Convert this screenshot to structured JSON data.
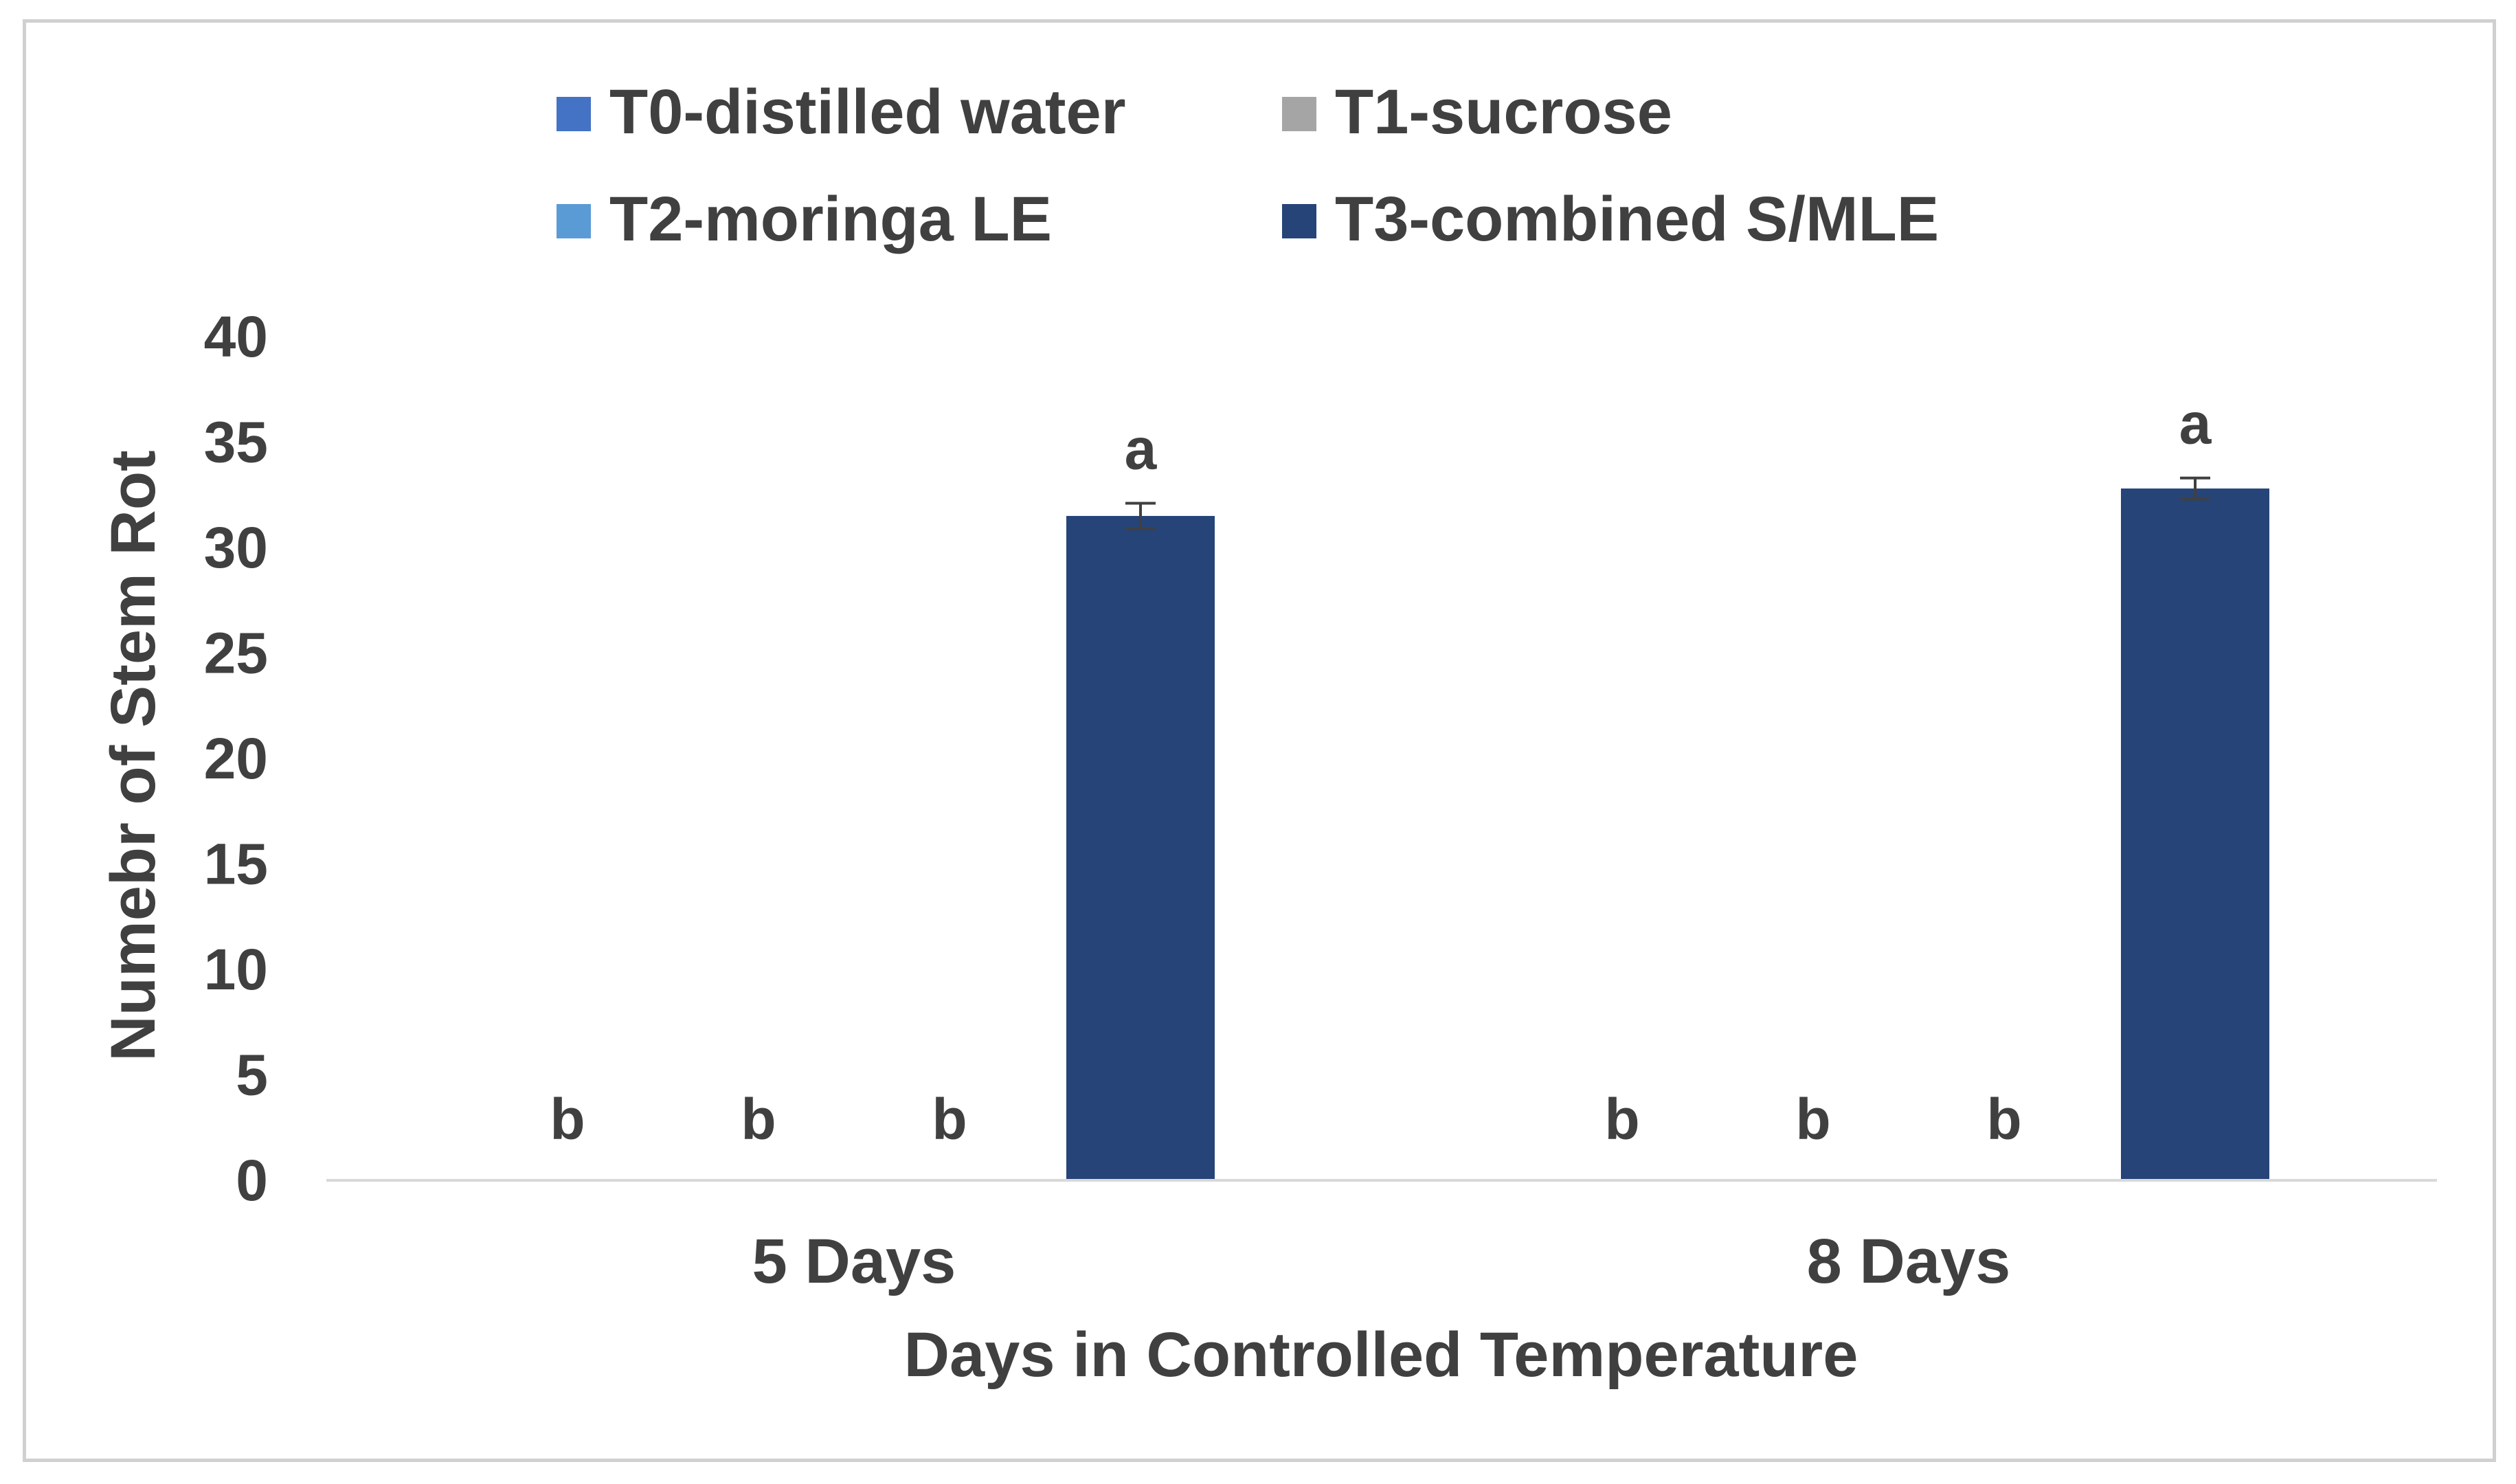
{
  "chart_data": {
    "type": "bar",
    "title": "",
    "xlabel": "Days in Controlled Temperature",
    "ylabel": "Numebr of Stem Rot",
    "ylim": [
      0,
      40
    ],
    "yticks": [
      0,
      5,
      10,
      15,
      20,
      25,
      30,
      35,
      40
    ],
    "categories": [
      "5 Days",
      "8 Days"
    ],
    "legend_position": "top",
    "grid": false,
    "series": [
      {
        "name": "T0-distilled water",
        "color": "#4472C4",
        "values": [
          0,
          0
        ],
        "errors": [
          0,
          0
        ],
        "labels": [
          "b",
          "b"
        ]
      },
      {
        "name": "T1-sucrose",
        "color": "#A5A5A5",
        "values": [
          0,
          0
        ],
        "errors": [
          0,
          0
        ],
        "labels": [
          "b",
          "b"
        ]
      },
      {
        "name": "T2-moringa LE",
        "color": "#5B9BD5",
        "values": [
          0,
          0
        ],
        "errors": [
          0,
          0
        ],
        "labels": [
          "b",
          "b"
        ]
      },
      {
        "name": "T3-combined S/MLE",
        "color": "#264478",
        "values": [
          31.5,
          32.8
        ],
        "errors": [
          0.6,
          0.5
        ],
        "labels": [
          "a",
          "a"
        ]
      }
    ]
  }
}
